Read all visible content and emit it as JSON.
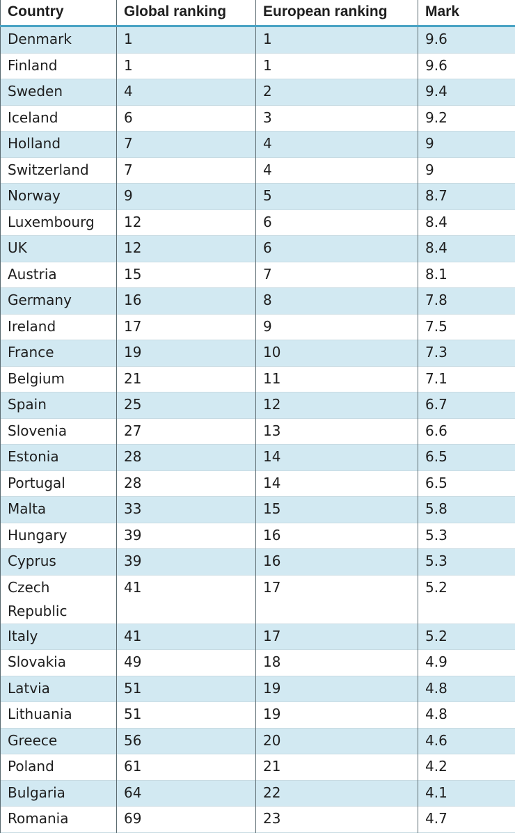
{
  "table": {
    "headers": [
      "Country",
      "Global ranking",
      "European ranking",
      "Mark"
    ],
    "rows": [
      [
        "Denmark",
        1,
        1,
        9.6
      ],
      [
        "Finland",
        1,
        1,
        9.6
      ],
      [
        "Sweden",
        4,
        2,
        9.4
      ],
      [
        "Iceland",
        6,
        3,
        9.2
      ],
      [
        "Holland",
        7,
        4,
        9
      ],
      [
        "Switzerland",
        7,
        4,
        9
      ],
      [
        "Norway",
        9,
        5,
        8.7
      ],
      [
        "Luxembourg",
        12,
        6,
        8.4
      ],
      [
        "UK",
        12,
        6,
        8.4
      ],
      [
        "Austria",
        15,
        7,
        8.1
      ],
      [
        "Germany",
        16,
        8,
        7.8
      ],
      [
        "Ireland",
        17,
        9,
        7.5
      ],
      [
        "France",
        19,
        10,
        7.3
      ],
      [
        "Belgium",
        21,
        11,
        7.1
      ],
      [
        "Spain",
        25,
        12,
        6.7
      ],
      [
        "Slovenia",
        27,
        13,
        6.6
      ],
      [
        "Estonia",
        28,
        14,
        6.5
      ],
      [
        "Portugal",
        28,
        14,
        6.5
      ],
      [
        "Malta",
        33,
        15,
        5.8
      ],
      [
        "Hungary",
        39,
        16,
        5.3
      ],
      [
        "Cyprus",
        39,
        16,
        5.3
      ],
      [
        "Czech Republic",
        41,
        17,
        5.2
      ],
      [
        "Italy",
        41,
        17,
        5.2
      ],
      [
        "Slovakia",
        49,
        18,
        4.9
      ],
      [
        "Latvia",
        51,
        19,
        4.8
      ],
      [
        "Lithuania",
        51,
        19,
        4.8
      ],
      [
        "Greece",
        56,
        20,
        4.6
      ],
      [
        "Poland",
        61,
        21,
        4.2
      ],
      [
        "Bulgaria",
        64,
        22,
        4.1
      ],
      [
        "Romania",
        69,
        23,
        4.7
      ]
    ]
  }
}
